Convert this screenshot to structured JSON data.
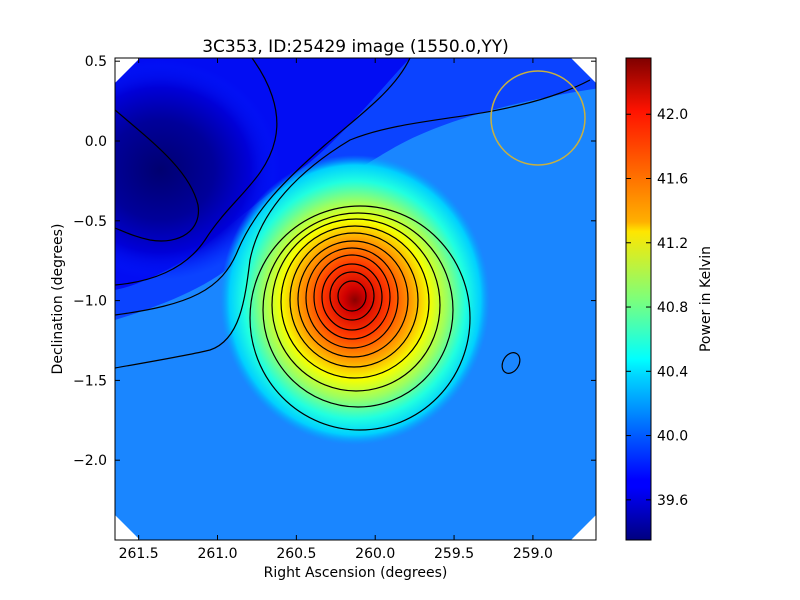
{
  "chart_data": [
    {
      "type": "heatmap",
      "title": "3C353, ID:25429 image (1550.0,YY)",
      "xlabel": "Right Ascension (degrees)",
      "ylabel": "Declination (degrees)",
      "xlim": [
        261.65,
        258.6
      ],
      "ylim": [
        -2.5,
        0.52
      ],
      "xticks": [
        "261.5",
        "261.0",
        "260.5",
        "260.0",
        "259.5",
        "259.0"
      ],
      "yticks": [
        "0.5",
        "0.0",
        "−0.5",
        "−1.0",
        "−1.5",
        "−2.0"
      ],
      "colormap": "jet",
      "contour_color": "#000000",
      "source_peak": {
        "ra": 260.13,
        "dec": -0.97,
        "power": 42.35
      },
      "background_power": 40.0,
      "low_region": {
        "ra": 261.5,
        "dec": -0.2,
        "power": 39.4
      },
      "small_contour": {
        "ra": 259.15,
        "dec": -1.38
      },
      "beam_circle": {
        "ra": 258.98,
        "dec": 0.16,
        "radius_deg": 0.3,
        "color": "#c8b040"
      },
      "grid": false
    },
    {
      "type": "colorbar",
      "label": "Power in Kelvin",
      "range": [
        39.35,
        42.35
      ],
      "ticks": [
        "39.6",
        "40.0",
        "40.4",
        "40.8",
        "41.2",
        "41.6",
        "42.0"
      ],
      "tick_values": [
        39.6,
        40.0,
        40.4,
        40.8,
        41.2,
        41.6,
        42.0
      ]
    }
  ]
}
